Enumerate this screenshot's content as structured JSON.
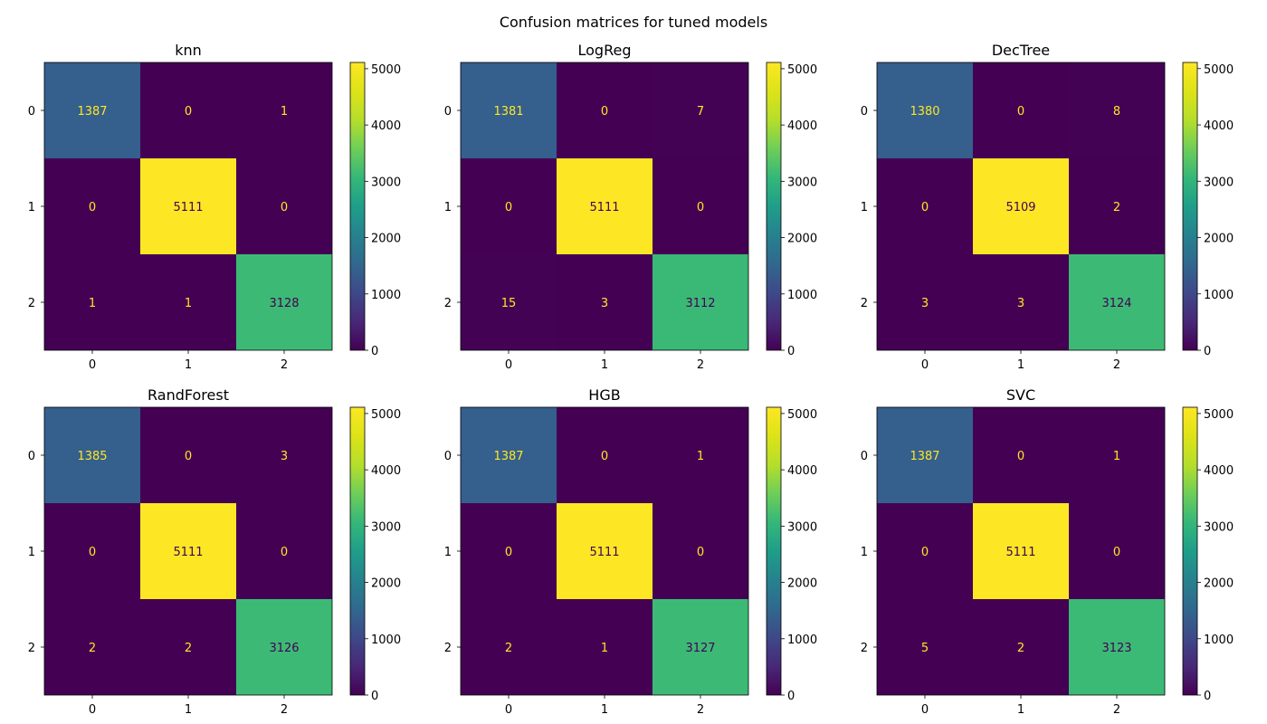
{
  "figure_title": "Confusion matrices for tuned models",
  "colormap": "viridis",
  "text_colors": {
    "on_dark": "#fde725",
    "on_light": "#440154"
  },
  "chart_data": [
    {
      "type": "heatmap",
      "title": "knn",
      "x_ticks": [
        "0",
        "1",
        "2"
      ],
      "y_ticks": [
        "0",
        "1",
        "2"
      ],
      "matrix": [
        [
          1387,
          0,
          1
        ],
        [
          0,
          5111,
          0
        ],
        [
          1,
          1,
          3128
        ]
      ],
      "colorbar": {
        "vmin": 0,
        "vmax": 5111,
        "ticks": [
          0,
          1000,
          2000,
          3000,
          4000,
          5000
        ]
      }
    },
    {
      "type": "heatmap",
      "title": "LogReg",
      "x_ticks": [
        "0",
        "1",
        "2"
      ],
      "y_ticks": [
        "0",
        "1",
        "2"
      ],
      "matrix": [
        [
          1381,
          0,
          7
        ],
        [
          0,
          5111,
          0
        ],
        [
          15,
          3,
          3112
        ]
      ],
      "colorbar": {
        "vmin": 0,
        "vmax": 5111,
        "ticks": [
          0,
          1000,
          2000,
          3000,
          4000,
          5000
        ]
      }
    },
    {
      "type": "heatmap",
      "title": "DecTree",
      "x_ticks": [
        "0",
        "1",
        "2"
      ],
      "y_ticks": [
        "0",
        "1",
        "2"
      ],
      "matrix": [
        [
          1380,
          0,
          8
        ],
        [
          0,
          5109,
          2
        ],
        [
          3,
          3,
          3124
        ]
      ],
      "colorbar": {
        "vmin": 0,
        "vmax": 5109,
        "ticks": [
          0,
          1000,
          2000,
          3000,
          4000,
          5000
        ]
      }
    },
    {
      "type": "heatmap",
      "title": "RandForest",
      "x_ticks": [
        "0",
        "1",
        "2"
      ],
      "y_ticks": [
        "0",
        "1",
        "2"
      ],
      "matrix": [
        [
          1385,
          0,
          3
        ],
        [
          0,
          5111,
          0
        ],
        [
          2,
          2,
          3126
        ]
      ],
      "colorbar": {
        "vmin": 0,
        "vmax": 5111,
        "ticks": [
          0,
          1000,
          2000,
          3000,
          4000,
          5000
        ]
      }
    },
    {
      "type": "heatmap",
      "title": "HGB",
      "x_ticks": [
        "0",
        "1",
        "2"
      ],
      "y_ticks": [
        "0",
        "1",
        "2"
      ],
      "matrix": [
        [
          1387,
          0,
          1
        ],
        [
          0,
          5111,
          0
        ],
        [
          2,
          1,
          3127
        ]
      ],
      "colorbar": {
        "vmin": 0,
        "vmax": 5111,
        "ticks": [
          0,
          1000,
          2000,
          3000,
          4000,
          5000
        ]
      }
    },
    {
      "type": "heatmap",
      "title": "SVC",
      "x_ticks": [
        "0",
        "1",
        "2"
      ],
      "y_ticks": [
        "0",
        "1",
        "2"
      ],
      "matrix": [
        [
          1387,
          0,
          1
        ],
        [
          0,
          5111,
          0
        ],
        [
          5,
          2,
          3123
        ]
      ],
      "colorbar": {
        "vmin": 0,
        "vmax": 5111,
        "ticks": [
          0,
          1000,
          2000,
          3000,
          4000,
          5000
        ]
      }
    }
  ]
}
